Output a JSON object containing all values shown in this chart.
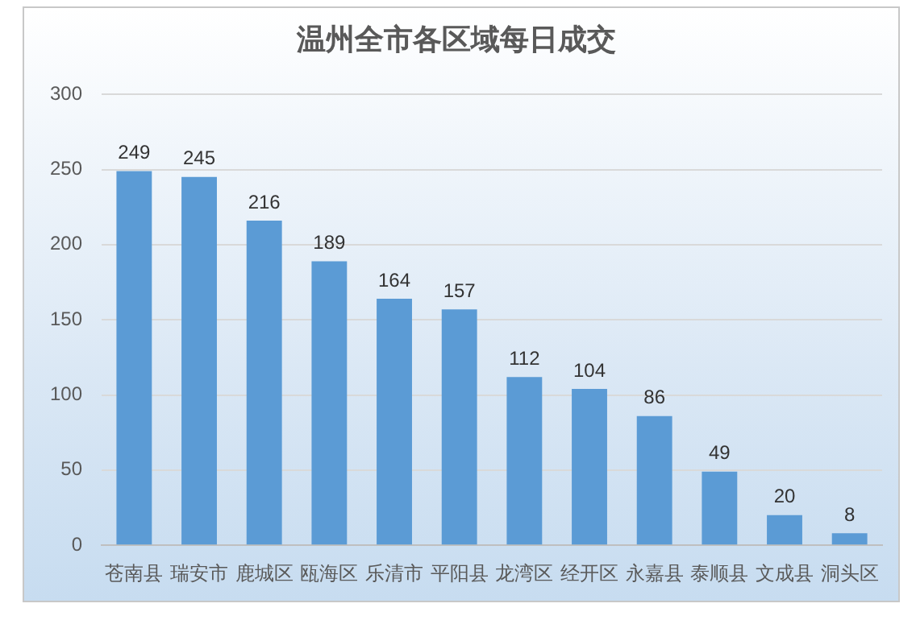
{
  "chart_data": {
    "type": "bar",
    "title": "温州全市各区域每日成交",
    "categories": [
      "苍南县",
      "瑞安市",
      "鹿城区",
      "瓯海区",
      "乐清市",
      "平阳县",
      "龙湾区",
      "经开区",
      "永嘉县",
      "泰顺县",
      "文成县",
      "洞头区"
    ],
    "values": [
      249,
      245,
      216,
      189,
      164,
      157,
      112,
      104,
      86,
      49,
      20,
      8
    ],
    "color": "#5b9bd5",
    "ylim": [
      0,
      300
    ],
    "yticks": [
      0,
      50,
      100,
      150,
      200,
      250,
      300
    ],
    "grid": "y",
    "data_labels": true
  }
}
